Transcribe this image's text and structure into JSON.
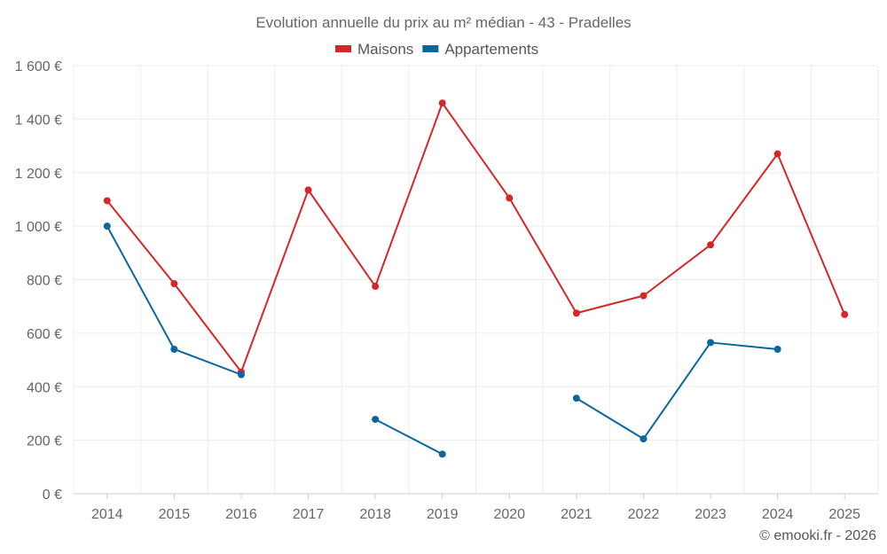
{
  "chart_data": {
    "type": "line",
    "title": "Evolution annuelle du prix au m² médian - 43 - Pradelles",
    "categories": [
      "2014",
      "2015",
      "2016",
      "2017",
      "2018",
      "2019",
      "2020",
      "2021",
      "2022",
      "2023",
      "2024",
      "2025"
    ],
    "series": [
      {
        "name": "Maisons",
        "color": "#d62728",
        "values": [
          1095,
          785,
          455,
          1135,
          775,
          1460,
          1105,
          675,
          740,
          930,
          1270,
          670
        ]
      },
      {
        "name": "Appartements",
        "color": "#0a66a0",
        "values": [
          1000,
          540,
          445,
          null,
          278,
          148,
          null,
          357,
          205,
          565,
          540,
          null
        ]
      }
    ],
    "ylim": [
      0,
      1600
    ],
    "yticks": [
      0,
      200,
      400,
      600,
      800,
      1000,
      1200,
      1400,
      1600
    ],
    "ytick_labels": [
      "0 €",
      "200 €",
      "400 €",
      "600 €",
      "800 €",
      "1 000 €",
      "1 200 €",
      "1 400 €",
      "1 600 €"
    ],
    "grid": true,
    "legend": "top-center",
    "xlabel": "",
    "ylabel": ""
  },
  "credit": "© emooki.fr - 2026"
}
